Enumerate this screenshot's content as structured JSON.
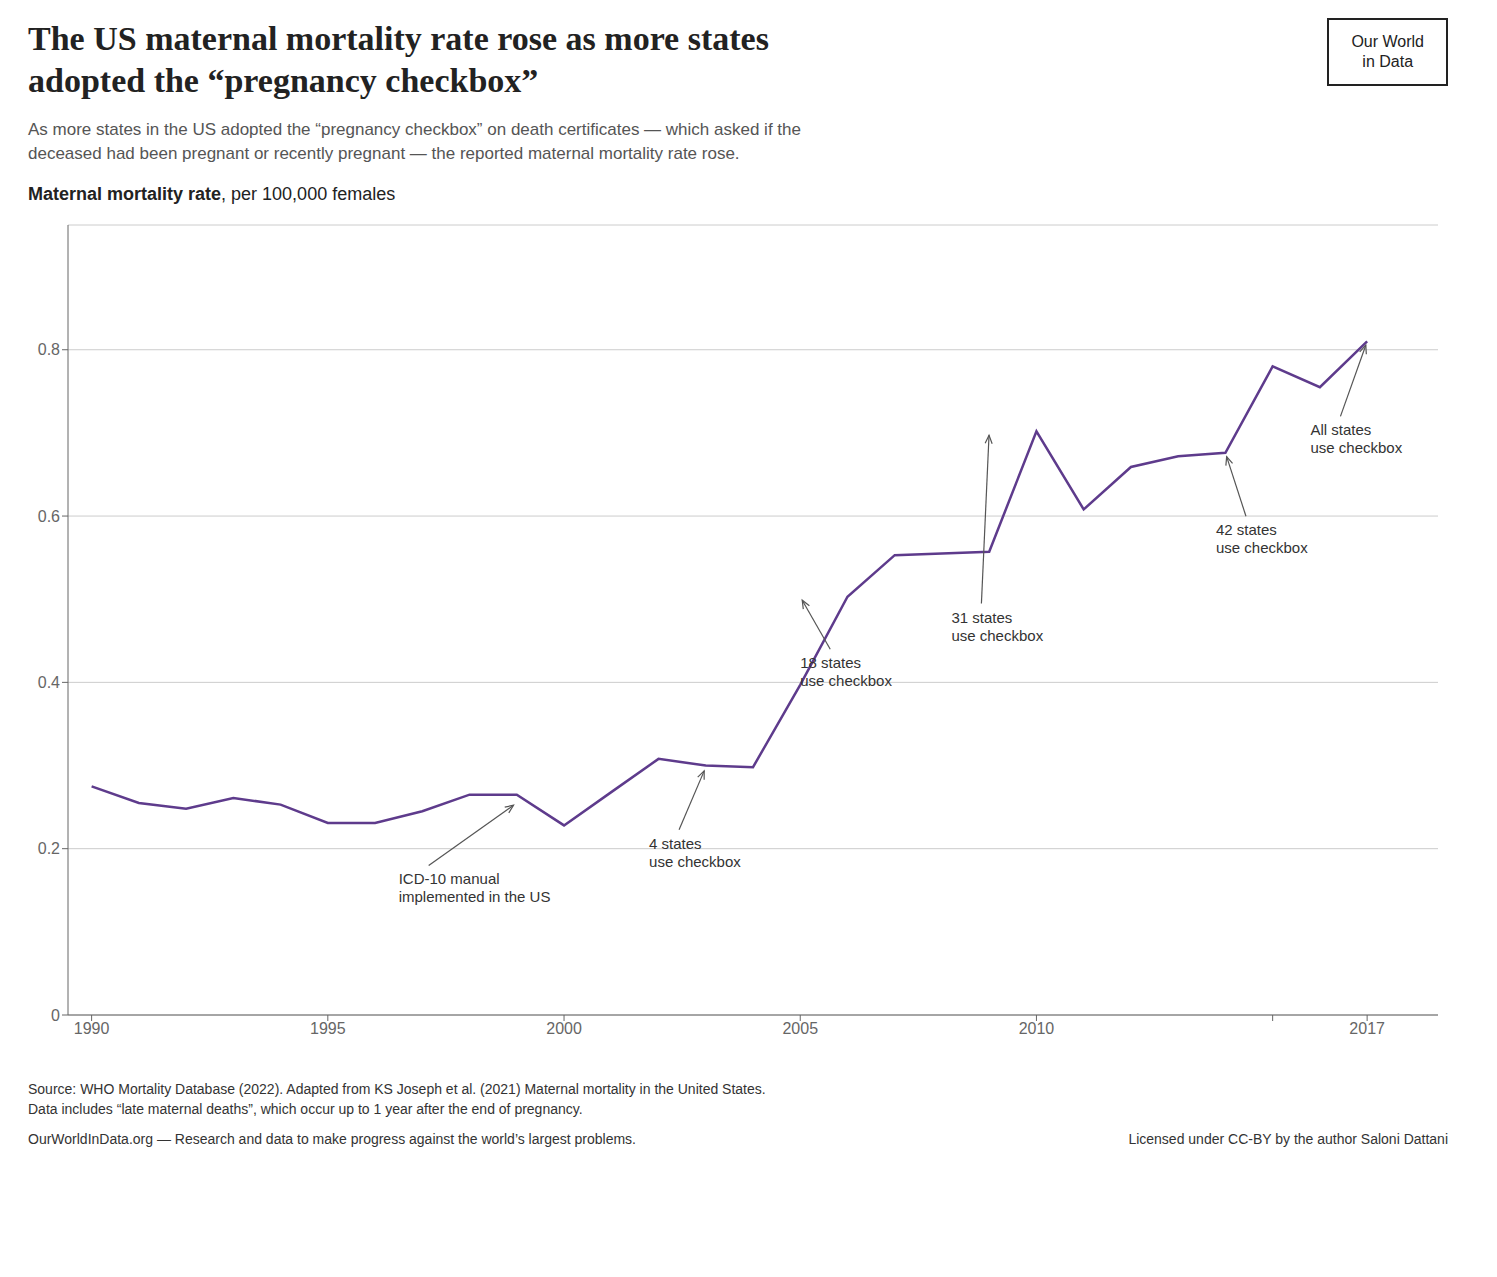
{
  "chart_data": {
    "type": "line",
    "title": "The US maternal mortality rate rose as more states\nadopted the “pregnancy checkbox”",
    "subtitle": "As more states in the US adopted the “pregnancy checkbox” on death certificates — which asked if the\ndeceased had been pregnant or recently pregnant — the reported maternal mortality rate rose.",
    "ylabel": "Maternal mortality rate, per 100,000 females",
    "x": [
      1990,
      1991,
      1992,
      1993,
      1994,
      1995,
      1996,
      1997,
      1998,
      1999,
      2000,
      2001,
      2002,
      2003,
      2004,
      2005,
      2006,
      2007,
      2008,
      2009,
      2010,
      2011,
      2012,
      2013,
      2014,
      2015,
      2016,
      2017
    ],
    "values": [
      0.275,
      0.255,
      0.248,
      0.261,
      0.253,
      0.231,
      0.231,
      0.245,
      0.265,
      0.265,
      0.228,
      0.268,
      0.308,
      0.3,
      0.298,
      0.397,
      0.503,
      0.553,
      0.555,
      0.557,
      0.702,
      0.608,
      0.659,
      0.672,
      0.676,
      0.78,
      0.755,
      0.81
    ],
    "color": "#5e3b8c",
    "xlim": [
      1989.5,
      2018.5
    ],
    "xticks": [
      1990,
      1995,
      2000,
      2005,
      2010,
      {
        "value": 2015,
        "label": null
      },
      2017
    ],
    "ylim": [
      0,
      0.95
    ],
    "yticks": [
      0,
      0.2,
      0.4,
      0.6,
      0.8
    ],
    "grid": "y",
    "annotations": [
      {
        "text": "ICD-10 manual\nimplemented in the US",
        "xytext": [
          1996.5,
          0.175
        ],
        "xy": [
          1999,
          0.255
        ]
      },
      {
        "text": "4 states\nuse checkbox",
        "xytext": [
          2001.8,
          0.218
        ],
        "xy": [
          2003,
          0.298
        ]
      },
      {
        "text": "18 states\nuse checkbox",
        "xytext": [
          2005.0,
          0.435
        ],
        "xy": [
          2005,
          0.503
        ]
      },
      {
        "text": "31 states\nuse checkbox",
        "xytext": [
          2008.2,
          0.49
        ],
        "xy": [
          2009,
          0.702
        ]
      },
      {
        "text": "42 states\nuse checkbox",
        "xytext": [
          2013.8,
          0.595
        ],
        "xy": [
          2014,
          0.676
        ]
      },
      {
        "text": "All states\nuse checkbox",
        "xytext": [
          2015.8,
          0.715
        ],
        "xy": [
          2017,
          0.81
        ]
      }
    ],
    "logo": "Our World\nin Data",
    "source": "Source: WHO Mortality Database (2022). Adapted from KS Joseph et al. (2021) Maternal mortality in the United States.",
    "note": "Data includes “late maternal deaths”, which occur up to 1 year after the end of pregnancy.",
    "footer": [
      "OurWorldInData.org — Research and data to make progress against the world’s largest problems.",
      "Licensed under CC-BY by the author Saloni Dattani"
    ]
  }
}
